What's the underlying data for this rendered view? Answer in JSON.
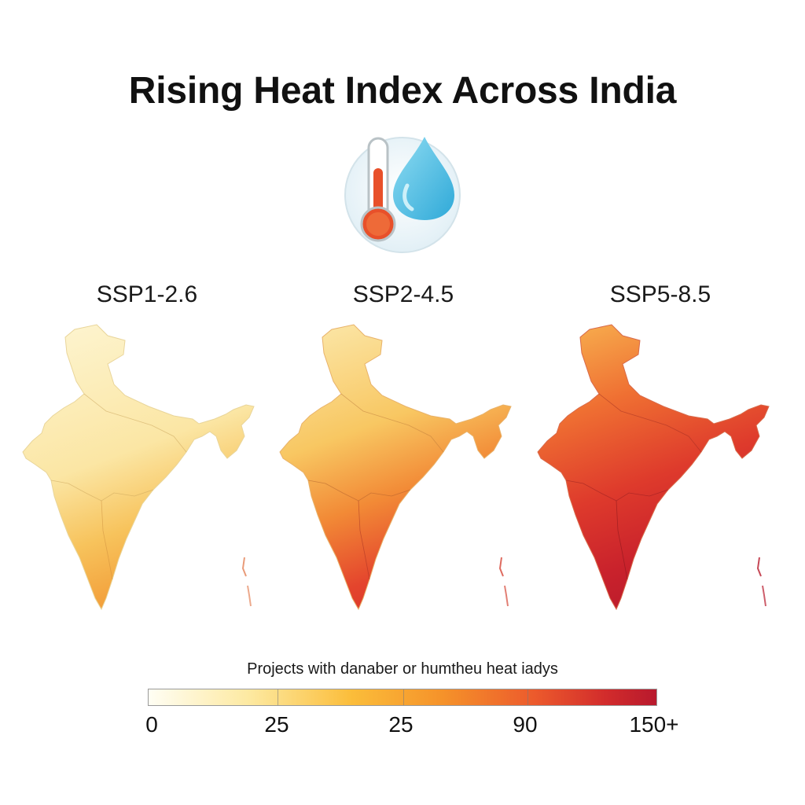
{
  "title": "Rising Heat Index Across India",
  "header_icon": {
    "thermometer": "thermometer-icon",
    "droplet": "water-droplet-icon"
  },
  "scenarios": [
    {
      "label": "SSP1-2.6"
    },
    {
      "label": "SSP2-4.5"
    },
    {
      "label": "SSP5-8.5"
    }
  ],
  "legend": {
    "caption": "Projects with danaber or humtheu heat iadys",
    "ticks": [
      "0",
      "25",
      "25",
      "90",
      "150+"
    ]
  },
  "colors": {
    "low": "#fffef4",
    "mid_low": "#fbbd3a",
    "mid": "#f5922a",
    "high": "#ec5a2c",
    "extreme": "#b8192d"
  }
}
